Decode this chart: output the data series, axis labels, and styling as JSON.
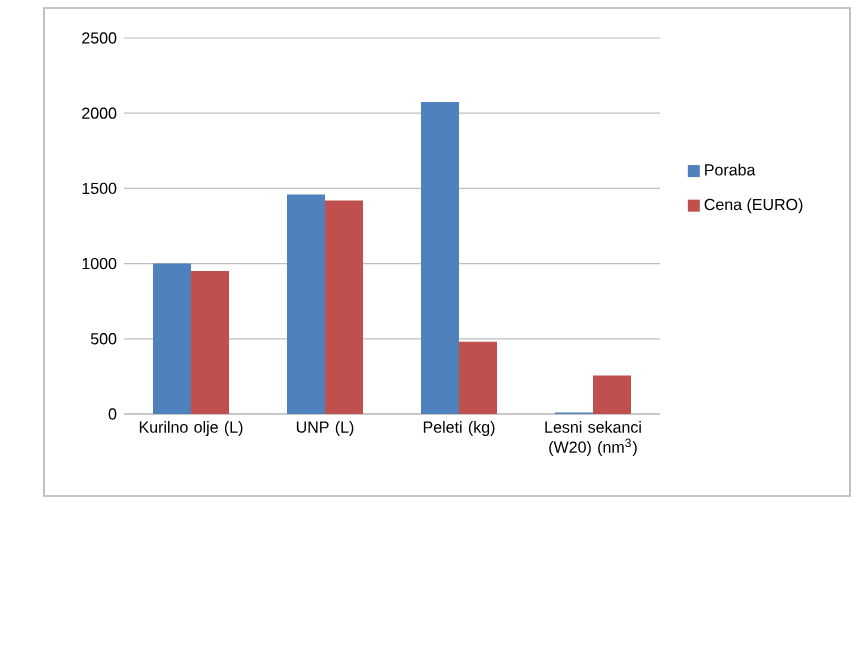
{
  "chart_data": {
    "type": "bar",
    "categories": [
      "Kurilno olje (L)",
      "UNP (L)",
      "Peleti (kg)",
      "Lesni sekanci (W20) (nm$^{3}$)"
    ],
    "series": [
      {
        "name": "Poraba",
        "color": "#4f81bd",
        "values": [
          1000,
          1460,
          2075,
          10
        ]
      },
      {
        "name": "Cena (EURO)",
        "color": "#c0504d",
        "values": [
          950,
          1420,
          480,
          255
        ]
      }
    ],
    "ylim": [
      0,
      2500
    ],
    "yticks": [
      0,
      500,
      1000,
      1500,
      2000,
      2500
    ],
    "grid": "y",
    "legend": "right"
  }
}
